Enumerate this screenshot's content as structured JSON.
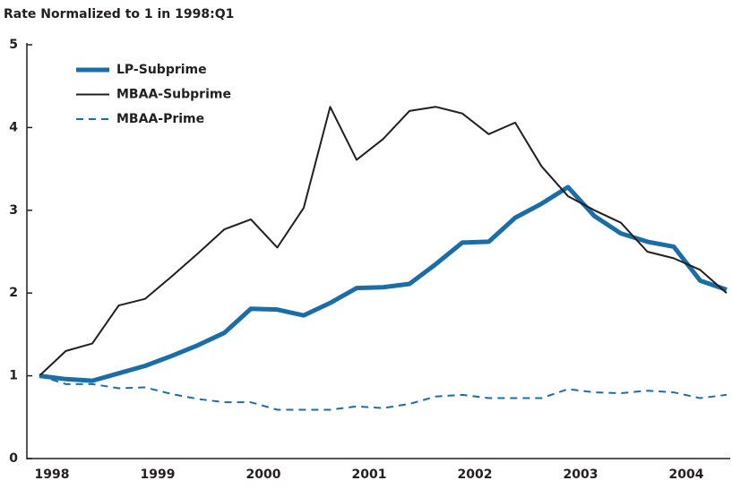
{
  "chart_data": {
    "type": "line",
    "y_label": "Rate Normalized to 1 in 1998:Q1",
    "categories": [
      "1998",
      null,
      null,
      null,
      "1999",
      null,
      null,
      null,
      "2000",
      null,
      null,
      null,
      "2001",
      null,
      null,
      null,
      "2002",
      null,
      null,
      null,
      "2003",
      null,
      null,
      null,
      "2004",
      null,
      null
    ],
    "series": [
      {
        "name": "LP-Subprime",
        "color": "#1a6ea8",
        "line_style": "thick",
        "values": [
          1.0,
          0.96,
          0.94,
          1.03,
          1.12,
          1.24,
          1.37,
          1.52,
          1.81,
          1.8,
          1.73,
          1.88,
          2.06,
          2.07,
          2.11,
          2.35,
          2.61,
          2.62,
          2.91,
          3.08,
          3.28,
          2.93,
          2.72,
          2.62,
          2.56,
          2.15,
          2.04
        ]
      },
      {
        "name": "MBAA-Subprime",
        "color": "#231f20",
        "line_style": "solid",
        "values": [
          1.0,
          1.3,
          1.39,
          1.85,
          1.93,
          2.2,
          2.48,
          2.77,
          2.89,
          2.55,
          3.03,
          4.25,
          3.61,
          3.86,
          4.2,
          4.25,
          4.17,
          3.92,
          4.06,
          3.53,
          3.17,
          3.0,
          2.85,
          2.5,
          2.42,
          2.28,
          2.0
        ]
      },
      {
        "name": "MBAA-Prime",
        "color": "#1a6ea8",
        "line_style": "dashed",
        "values": [
          1.0,
          0.9,
          0.9,
          0.85,
          0.86,
          0.78,
          0.72,
          0.68,
          0.68,
          0.59,
          0.59,
          0.59,
          0.63,
          0.61,
          0.66,
          0.75,
          0.77,
          0.73,
          0.73,
          0.73,
          0.84,
          0.8,
          0.79,
          0.82,
          0.8,
          0.73,
          0.77
        ]
      }
    ],
    "ylim": [
      0,
      5
    ],
    "yticks": [
      0,
      1,
      2,
      3,
      4,
      5
    ],
    "grid": false,
    "legend": "top-left"
  }
}
